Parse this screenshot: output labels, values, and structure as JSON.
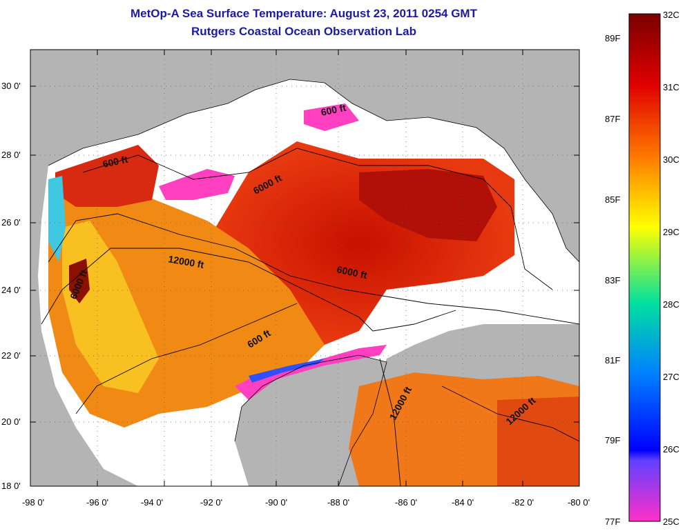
{
  "title": "MetOp-A Sea Surface Temperature:  August 23, 2011 0254 GMT",
  "subtitle": "Rutgers Coastal Ocean Observation Lab",
  "lat_ticks": [
    "30 0'",
    "28 0'",
    "26 0'",
    "24 0'",
    "22 0'",
    "20 0'",
    "18 0'"
  ],
  "lon_ticks": [
    "-98 0'",
    "-96 0'",
    "-94 0'",
    "-92 0'",
    "-90 0'",
    "-88 0'",
    "-86 0'",
    "-84 0'",
    "-82 0'",
    "-80 0'"
  ],
  "contour_labels": [
    "600 ft",
    "600 ft",
    "6000 ft",
    "12000 ft",
    "6000 ft",
    "6000 ft",
    "600 ft",
    "12000 ft",
    "12000 ft"
  ],
  "colorbar": {
    "celsius_labels": [
      "32C",
      "31C",
      "30C",
      "29C",
      "28C",
      "27C",
      "26C",
      "25C"
    ],
    "fahrenheit_labels": [
      "89F",
      "87F",
      "85F",
      "83F",
      "81F",
      "79F",
      "77F"
    ],
    "range_c": [
      25,
      32
    ]
  },
  "colors": {
    "title": "#1a1aa6",
    "land": "#b4b4b4",
    "no_data": "#ffffff",
    "warm": "#e83010",
    "hot": "#8b0000",
    "cool": "#ff40c0"
  }
}
